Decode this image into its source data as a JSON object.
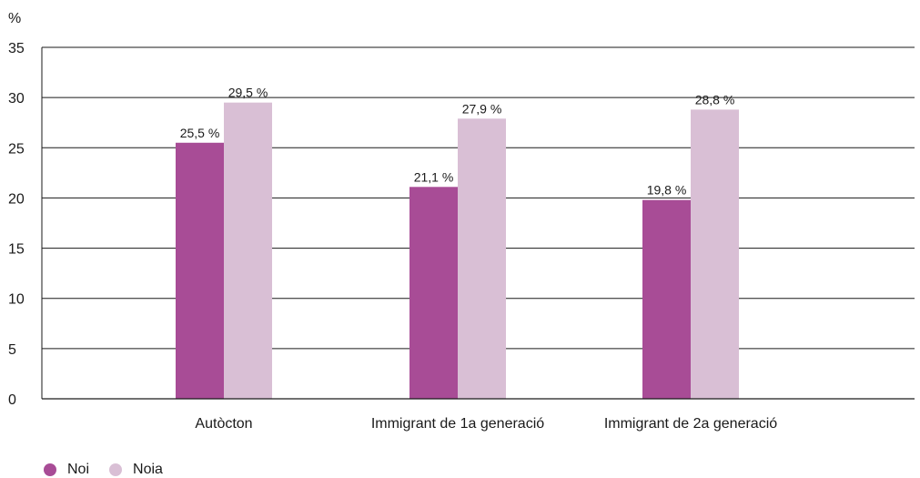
{
  "chart_data": {
    "type": "bar",
    "ylabel": "%",
    "ylim": [
      0,
      35
    ],
    "yticks": [
      0,
      5,
      10,
      15,
      20,
      25,
      30,
      35
    ],
    "grid": true,
    "legend_position": "bottom-left",
    "categories": [
      "Autòcton",
      "Immigrant de 1a generació",
      "Immigrant de 2a generació"
    ],
    "series": [
      {
        "name": "Noi",
        "color": "#a84c96",
        "values": [
          25.5,
          21.1,
          19.8
        ],
        "labels": [
          "25,5 %",
          "21,1 %",
          "19,8 %"
        ]
      },
      {
        "name": "Noia",
        "color": "#d9bfd5",
        "values": [
          29.5,
          27.9,
          28.8
        ],
        "labels": [
          "29,5 %",
          "27,9 %",
          "28,8 %"
        ]
      }
    ]
  }
}
